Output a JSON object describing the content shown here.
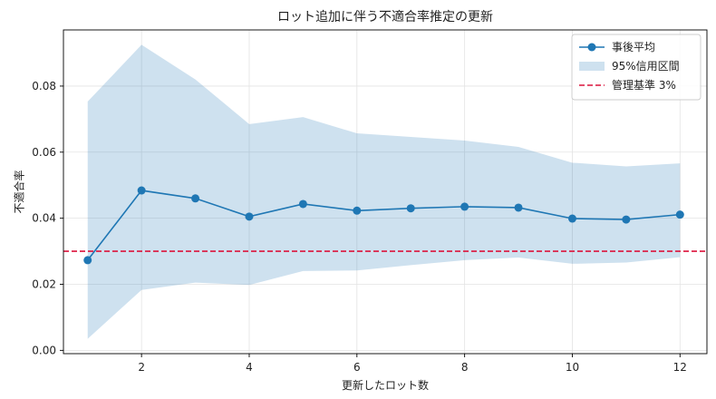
{
  "chart_data": {
    "type": "line",
    "title": "ロット追加に伴う不適合率推定の更新",
    "xlabel": "更新したロット数",
    "ylabel": "不適合率",
    "xlim": [
      0.55,
      12.5
    ],
    "ylim": [
      -0.001,
      0.097
    ],
    "x_ticks": [
      2,
      4,
      6,
      8,
      10,
      12
    ],
    "y_ticks": [
      0.0,
      0.02,
      0.04,
      0.06,
      0.08
    ],
    "y_tick_labels": [
      "0.00",
      "0.02",
      "0.04",
      "0.06",
      "0.08"
    ],
    "grid": true,
    "legend_position": "top-right",
    "x": [
      1,
      2,
      3,
      4,
      5,
      6,
      7,
      8,
      9,
      10,
      11,
      12
    ],
    "series": [
      {
        "name": "事後平均",
        "kind": "line-marker",
        "color": "#1f77b4",
        "values": [
          0.0273,
          0.0484,
          0.046,
          0.0405,
          0.0443,
          0.0423,
          0.043,
          0.0435,
          0.0432,
          0.0399,
          0.0396,
          0.0411
        ]
      },
      {
        "name": "95%信用区間",
        "kind": "band",
        "color": "#1f77b4",
        "opacity": 0.22,
        "lower": [
          0.0035,
          0.0183,
          0.0205,
          0.0198,
          0.024,
          0.0242,
          0.0258,
          0.0273,
          0.0281,
          0.0262,
          0.0266,
          0.0282
        ],
        "upper": [
          0.0753,
          0.0925,
          0.082,
          0.0685,
          0.0706,
          0.0657,
          0.0646,
          0.0635,
          0.0616,
          0.0568,
          0.0557,
          0.0566
        ]
      },
      {
        "name": "管理基準 3%",
        "kind": "hline",
        "color": "#dc143c",
        "value": 0.03
      }
    ]
  }
}
